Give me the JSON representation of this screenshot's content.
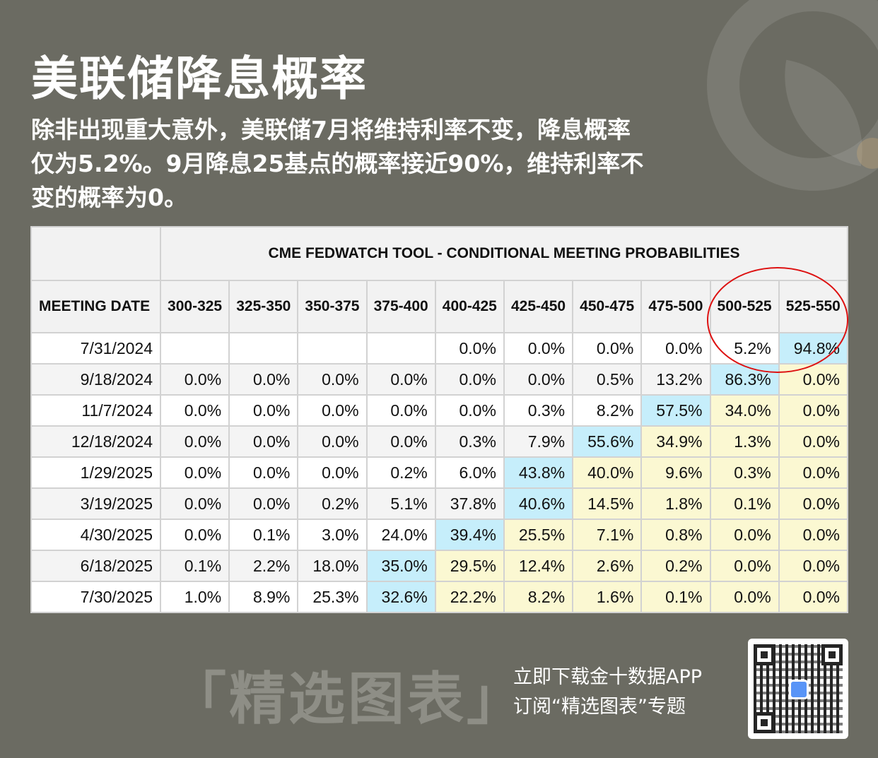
{
  "title": "美联储降息概率",
  "subtitle": "除非出现重大意外，美联储7月将维持利率不变，降息概率仅为5.2%。9月降息25基点的概率接近90%，维持利率不变的概率为0。",
  "table": {
    "tool_title": "CME FEDWATCH TOOL - CONDITIONAL MEETING PROBABILITIES",
    "date_header": "MEETING DATE",
    "columns": [
      "300-325",
      "325-350",
      "350-375",
      "375-400",
      "400-425",
      "425-450",
      "450-475",
      "475-500",
      "500-525",
      "525-550"
    ],
    "rows": [
      {
        "date": "7/31/2024",
        "values": [
          "",
          "",
          "",
          "",
          "0.0%",
          "0.0%",
          "0.0%",
          "0.0%",
          "5.2%",
          "94.8%"
        ],
        "hl": [
          "",
          "",
          "",
          "",
          "",
          "",
          "",
          "",
          "",
          "b"
        ]
      },
      {
        "date": "9/18/2024",
        "values": [
          "0.0%",
          "0.0%",
          "0.0%",
          "0.0%",
          "0.0%",
          "0.0%",
          "0.5%",
          "13.2%",
          "86.3%",
          "0.0%"
        ],
        "hl": [
          "",
          "",
          "",
          "",
          "",
          "",
          "",
          "",
          "b",
          "y"
        ]
      },
      {
        "date": "11/7/2024",
        "values": [
          "0.0%",
          "0.0%",
          "0.0%",
          "0.0%",
          "0.0%",
          "0.3%",
          "8.2%",
          "57.5%",
          "34.0%",
          "0.0%"
        ],
        "hl": [
          "",
          "",
          "",
          "",
          "",
          "",
          "",
          "b",
          "y",
          "y"
        ]
      },
      {
        "date": "12/18/2024",
        "values": [
          "0.0%",
          "0.0%",
          "0.0%",
          "0.0%",
          "0.3%",
          "7.9%",
          "55.6%",
          "34.9%",
          "1.3%",
          "0.0%"
        ],
        "hl": [
          "",
          "",
          "",
          "",
          "",
          "",
          "b",
          "y",
          "y",
          "y"
        ]
      },
      {
        "date": "1/29/2025",
        "values": [
          "0.0%",
          "0.0%",
          "0.0%",
          "0.2%",
          "6.0%",
          "43.8%",
          "40.0%",
          "9.6%",
          "0.3%",
          "0.0%"
        ],
        "hl": [
          "",
          "",
          "",
          "",
          "",
          "b",
          "y",
          "y",
          "y",
          "y"
        ]
      },
      {
        "date": "3/19/2025",
        "values": [
          "0.0%",
          "0.0%",
          "0.2%",
          "5.1%",
          "37.8%",
          "40.6%",
          "14.5%",
          "1.8%",
          "0.1%",
          "0.0%"
        ],
        "hl": [
          "",
          "",
          "",
          "",
          "",
          "b",
          "y",
          "y",
          "y",
          "y"
        ]
      },
      {
        "date": "4/30/2025",
        "values": [
          "0.0%",
          "0.1%",
          "3.0%",
          "24.0%",
          "39.4%",
          "25.5%",
          "7.1%",
          "0.8%",
          "0.0%",
          "0.0%"
        ],
        "hl": [
          "",
          "",
          "",
          "",
          "b",
          "y",
          "y",
          "y",
          "y",
          "y"
        ]
      },
      {
        "date": "6/18/2025",
        "values": [
          "0.1%",
          "2.2%",
          "18.0%",
          "35.0%",
          "29.5%",
          "12.4%",
          "2.6%",
          "0.2%",
          "0.0%",
          "0.0%"
        ],
        "hl": [
          "",
          "",
          "",
          "b",
          "y",
          "y",
          "y",
          "y",
          "y",
          "y"
        ]
      },
      {
        "date": "7/30/2025",
        "values": [
          "1.0%",
          "8.9%",
          "25.3%",
          "32.6%",
          "22.2%",
          "8.2%",
          "1.6%",
          "0.1%",
          "0.0%",
          "0.0%"
        ],
        "hl": [
          "",
          "",
          "",
          "b",
          "y",
          "y",
          "y",
          "y",
          "y",
          "y"
        ]
      }
    ]
  },
  "footer": {
    "banner": "「精选图表」",
    "promo_line1": "立即下载金十数据APP",
    "promo_line2": "订阅“精选图表”专题"
  },
  "colors": {
    "background": "#6b6b62",
    "highlight_blue": "#c6eefb",
    "highlight_yellow": "#fbf8d2",
    "circle": "#d11111"
  },
  "icons": {
    "qr": "qr-code-icon"
  }
}
